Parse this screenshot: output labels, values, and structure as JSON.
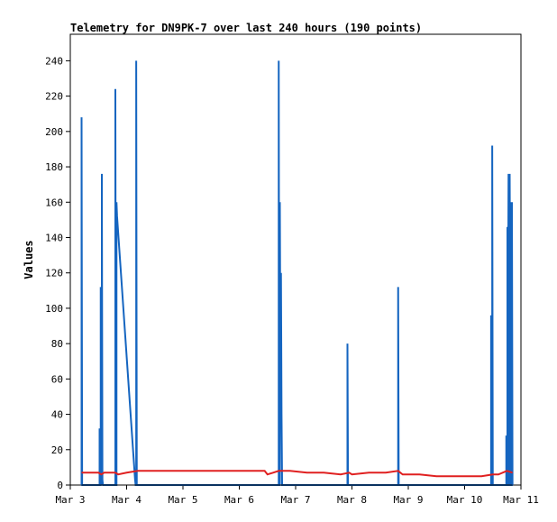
{
  "chart_data": {
    "type": "line",
    "title": "Telemetry for DN9PK-7 over last 240 hours (190 points)",
    "xlabel": "",
    "ylabel": "Values",
    "xlim": [
      3.0,
      11.0
    ],
    "ylim": [
      0,
      255
    ],
    "x_ticks": [
      {
        "value": 3,
        "label": "Mar 3"
      },
      {
        "value": 4,
        "label": "Mar 4"
      },
      {
        "value": 5,
        "label": "Mar 5"
      },
      {
        "value": 6,
        "label": "Mar 6"
      },
      {
        "value": 7,
        "label": "Mar 7"
      },
      {
        "value": 8,
        "label": "Mar 8"
      },
      {
        "value": 9,
        "label": "Mar 9"
      },
      {
        "value": 10,
        "label": "Mar 10"
      },
      {
        "value": 11,
        "label": "Mar 11"
      }
    ],
    "y_ticks": [
      0,
      20,
      40,
      60,
      80,
      100,
      120,
      140,
      160,
      180,
      200,
      220,
      240
    ],
    "grid": false,
    "colors": {
      "series1": "#1565c0",
      "series2": "#e02020"
    },
    "series": [
      {
        "name": "",
        "color": "#1565c0",
        "points": [
          [
            3.2,
            0
          ],
          [
            3.2,
            208
          ],
          [
            3.21,
            0
          ],
          [
            3.52,
            0
          ],
          [
            3.52,
            32
          ],
          [
            3.53,
            0
          ],
          [
            3.54,
            0
          ],
          [
            3.54,
            112
          ],
          [
            3.55,
            3
          ],
          [
            3.56,
            0
          ],
          [
            3.56,
            176
          ],
          [
            3.57,
            3
          ],
          [
            3.58,
            0
          ],
          [
            3.8,
            0
          ],
          [
            3.8,
            224
          ],
          [
            3.81,
            0
          ],
          [
            3.82,
            0
          ],
          [
            3.82,
            160
          ],
          [
            3.83,
            152
          ],
          [
            4.15,
            3
          ],
          [
            4.16,
            0
          ],
          [
            4.17,
            0
          ],
          [
            4.17,
            240
          ],
          [
            4.18,
            0
          ],
          [
            6.7,
            0
          ],
          [
            6.7,
            240
          ],
          [
            6.71,
            0
          ],
          [
            6.72,
            0
          ],
          [
            6.72,
            160
          ],
          [
            6.73,
            64
          ],
          [
            6.74,
            120
          ],
          [
            6.75,
            40
          ],
          [
            6.76,
            0
          ],
          [
            7.92,
            0
          ],
          [
            7.92,
            80
          ],
          [
            7.93,
            0
          ],
          [
            8.82,
            0
          ],
          [
            8.82,
            112
          ],
          [
            8.83,
            0
          ],
          [
            10.47,
            0
          ],
          [
            10.47,
            96
          ],
          [
            10.48,
            0
          ],
          [
            10.49,
            0
          ],
          [
            10.49,
            192
          ],
          [
            10.5,
            0
          ],
          [
            10.74,
            0
          ],
          [
            10.74,
            28
          ],
          [
            10.75,
            0
          ],
          [
            10.76,
            0
          ],
          [
            10.76,
            146
          ],
          [
            10.77,
            88
          ],
          [
            10.78,
            176
          ],
          [
            10.79,
            0
          ],
          [
            10.8,
            0
          ],
          [
            10.8,
            176
          ],
          [
            10.81,
            88
          ],
          [
            10.82,
            160
          ],
          [
            10.83,
            0
          ],
          [
            10.84,
            0
          ],
          [
            10.84,
            160
          ],
          [
            10.85,
            0
          ]
        ]
      },
      {
        "name": "",
        "color": "#e02020",
        "points": [
          [
            3.2,
            7
          ],
          [
            3.5,
            7
          ],
          [
            3.55,
            6
          ],
          [
            3.6,
            7
          ],
          [
            3.8,
            7
          ],
          [
            3.85,
            6
          ],
          [
            4.0,
            7
          ],
          [
            4.2,
            8
          ],
          [
            5.0,
            8
          ],
          [
            6.0,
            8
          ],
          [
            6.45,
            8
          ],
          [
            6.5,
            6
          ],
          [
            6.6,
            7
          ],
          [
            6.7,
            8
          ],
          [
            6.9,
            8
          ],
          [
            7.2,
            7
          ],
          [
            7.5,
            7
          ],
          [
            7.8,
            6
          ],
          [
            7.95,
            7
          ],
          [
            8.0,
            6
          ],
          [
            8.3,
            7
          ],
          [
            8.6,
            7
          ],
          [
            8.82,
            8
          ],
          [
            8.9,
            6
          ],
          [
            9.2,
            6
          ],
          [
            9.5,
            5
          ],
          [
            9.8,
            5
          ],
          [
            10.0,
            5
          ],
          [
            10.3,
            5
          ],
          [
            10.5,
            6
          ],
          [
            10.6,
            6
          ],
          [
            10.75,
            8
          ],
          [
            10.85,
            7
          ]
        ]
      }
    ]
  }
}
